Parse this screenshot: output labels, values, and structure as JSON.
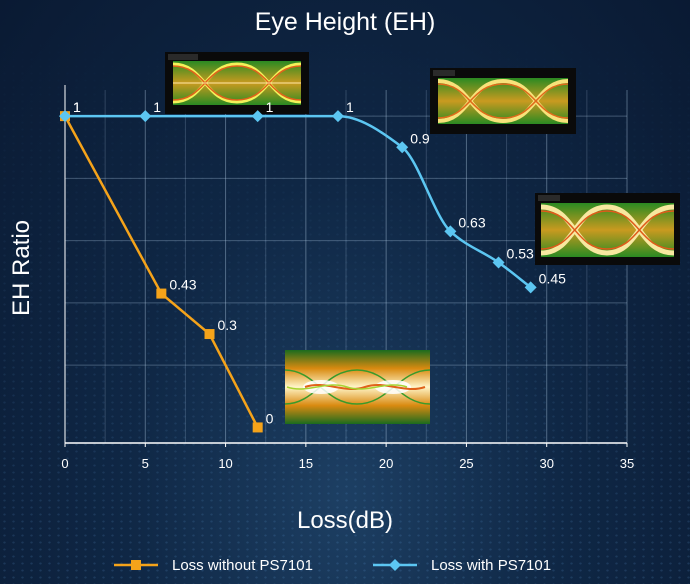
{
  "chart_data": {
    "type": "line",
    "title": "Eye Height (EH)",
    "xlabel": "Loss(dB)",
    "ylabel": "EH Ratio",
    "xlim": [
      0,
      35
    ],
    "ylim": [
      -0.05,
      1.1
    ],
    "xticks": [
      0,
      5,
      10,
      15,
      20,
      25,
      30,
      35
    ],
    "grid": true,
    "legend_position": "bottom",
    "series": [
      {
        "name": "Loss without PS7101",
        "color": "#f5a31a",
        "marker": "square",
        "smooth": false,
        "x": [
          0,
          6,
          9,
          12
        ],
        "y": [
          1,
          0.43,
          0.3,
          0
        ],
        "labels": [
          "1",
          "0.43",
          "0.3",
          "0"
        ]
      },
      {
        "name": "Loss with PS7101",
        "color": "#5cc6f2",
        "marker": "diamond",
        "smooth": true,
        "x": [
          0,
          5,
          12,
          17,
          21,
          24,
          27,
          29
        ],
        "y": [
          1,
          1,
          1,
          1,
          0.9,
          0.63,
          0.53,
          0.45
        ],
        "labels": [
          "1",
          "1",
          "1",
          "1",
          "0.9",
          "0.63",
          "0.53",
          "0.45"
        ]
      }
    ],
    "annotations": [
      "eye-diagram-image",
      "eye-diagram-image",
      "eye-diagram-image",
      "eye-diagram-image"
    ]
  }
}
